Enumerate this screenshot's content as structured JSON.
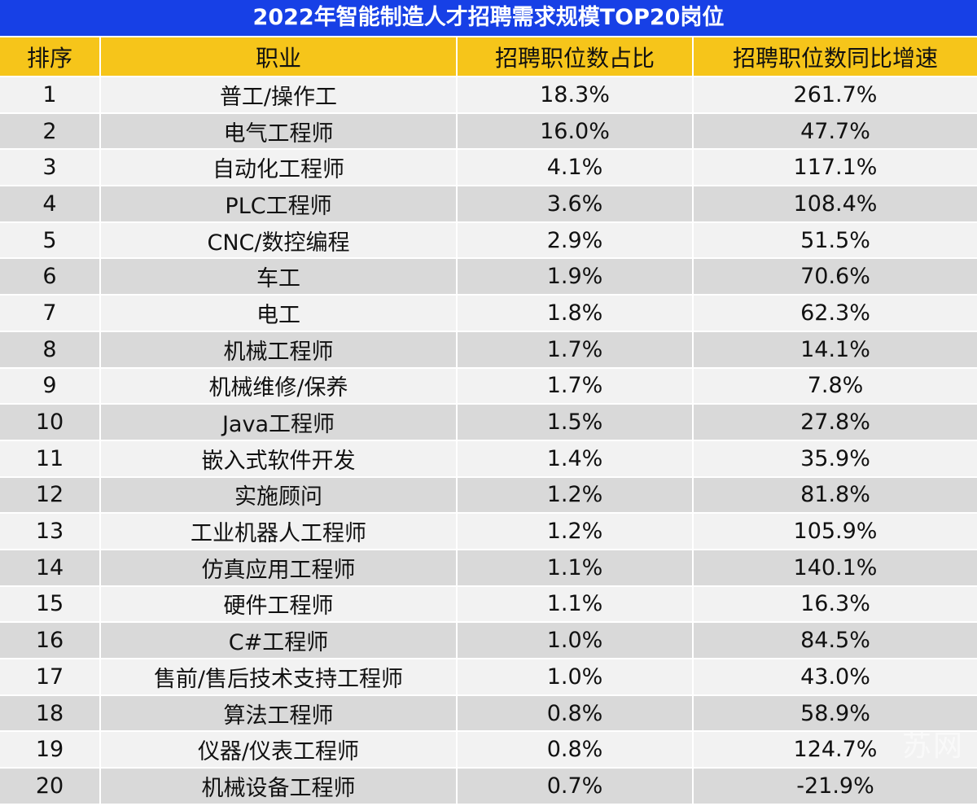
{
  "chart_data": {
    "type": "table",
    "title": "2022年智能制造人才招聘需求规模TOP20岗位",
    "columns": [
      "排序",
      "职业",
      "招聘职位数占比",
      "招聘职位数同比增速"
    ],
    "rows": [
      [
        "1",
        "普工/操作工",
        "18.3%",
        "261.7%"
      ],
      [
        "2",
        "电气工程师",
        "16.0%",
        "47.7%"
      ],
      [
        "3",
        "自动化工程师",
        "4.1%",
        "117.1%"
      ],
      [
        "4",
        "PLC工程师",
        "3.6%",
        "108.4%"
      ],
      [
        "5",
        "CNC/数控编程",
        "2.9%",
        "51.5%"
      ],
      [
        "6",
        "车工",
        "1.9%",
        "70.6%"
      ],
      [
        "7",
        "电工",
        "1.8%",
        "62.3%"
      ],
      [
        "8",
        "机械工程师",
        "1.7%",
        "14.1%"
      ],
      [
        "9",
        "机械维修/保养",
        "1.7%",
        "7.8%"
      ],
      [
        "10",
        "Java工程师",
        "1.5%",
        "27.8%"
      ],
      [
        "11",
        "嵌入式软件开发",
        "1.4%",
        "35.9%"
      ],
      [
        "12",
        "实施顾问",
        "1.2%",
        "81.8%"
      ],
      [
        "13",
        "工业机器人工程师",
        "1.2%",
        "105.9%"
      ],
      [
        "14",
        "仿真应用工程师",
        "1.1%",
        "140.1%"
      ],
      [
        "15",
        "硬件工程师",
        "1.1%",
        "16.3%"
      ],
      [
        "16",
        "C#工程师",
        "1.0%",
        "84.5%"
      ],
      [
        "17",
        "售前/售后技术支持工程师",
        "1.0%",
        "43.0%"
      ],
      [
        "18",
        "算法工程师",
        "0.8%",
        "58.9%"
      ],
      [
        "19",
        "仪器/仪表工程师",
        "0.8%",
        "124.7%"
      ],
      [
        "20",
        "机械设备工程师",
        "0.7%",
        "-21.9%"
      ]
    ]
  },
  "colors": {
    "title_bg": "#1740e6",
    "header_bg": "#f6c51a",
    "row_light": "#f2f2f2",
    "row_dark": "#d9d9d9"
  },
  "watermark": "苏网"
}
